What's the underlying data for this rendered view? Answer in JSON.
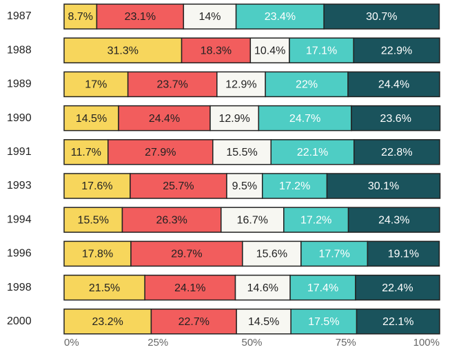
{
  "chart_data": {
    "type": "stacked-barh",
    "categories": [
      "1987",
      "1988",
      "1989",
      "1990",
      "1991",
      "1993",
      "1994",
      "1996",
      "1998",
      "2000"
    ],
    "series": [
      {
        "color": "#f7d65c",
        "values": [
          8.7,
          31.3,
          17,
          14.5,
          11.7,
          17.6,
          15.5,
          17.8,
          21.5,
          23.2
        ],
        "value_labels": [
          "8.7%",
          "31.3%",
          "17%",
          "14.5%",
          "11.7%",
          "17.6%",
          "15.5%",
          "17.8%",
          "21.5%",
          "23.2%"
        ]
      },
      {
        "color": "#f25d5d",
        "values": [
          23.1,
          18.3,
          23.7,
          24.4,
          27.9,
          25.7,
          26.3,
          29.7,
          24.1,
          22.7
        ],
        "value_labels": [
          "23.1%",
          "18.3%",
          "23.7%",
          "24.4%",
          "27.9%",
          "25.7%",
          "26.3%",
          "29.7%",
          "24.1%",
          "22.7%"
        ]
      },
      {
        "color": "#f7f7f2",
        "values": [
          14,
          10.4,
          12.9,
          12.9,
          15.5,
          9.5,
          16.7,
          15.6,
          14.6,
          14.5
        ],
        "value_labels": [
          "14%",
          "10.4%",
          "12.9%",
          "12.9%",
          "15.5%",
          "9.5%",
          "16.7%",
          "15.6%",
          "14.6%",
          "14.5%"
        ]
      },
      {
        "color": "#4ecdc4",
        "values": [
          23.4,
          17.1,
          22,
          24.7,
          22.1,
          17.2,
          17.2,
          17.7,
          17.4,
          17.5
        ],
        "value_labels": [
          "23.4%",
          "17.1%",
          "22%",
          "24.7%",
          "22.1%",
          "17.2%",
          "17.2%",
          "17.7%",
          "17.4%",
          "17.5%"
        ]
      },
      {
        "color": "#1a535c",
        "values": [
          30.7,
          22.9,
          24.4,
          23.6,
          22.8,
          30.1,
          24.3,
          19.1,
          22.4,
          22.1
        ],
        "value_labels": [
          "30.7%",
          "22.9%",
          "24.4%",
          "23.6%",
          "22.8%",
          "30.1%",
          "24.3%",
          "19.1%",
          "22.4%",
          "22.1%"
        ]
      }
    ],
    "xlim": [
      0,
      100
    ],
    "xticks": [
      {
        "value": 0,
        "label": "0%"
      },
      {
        "value": 25,
        "label": "25%"
      },
      {
        "value": 50,
        "label": "50%"
      },
      {
        "value": 75,
        "label": "75%"
      },
      {
        "value": 100,
        "label": "100%"
      }
    ]
  }
}
